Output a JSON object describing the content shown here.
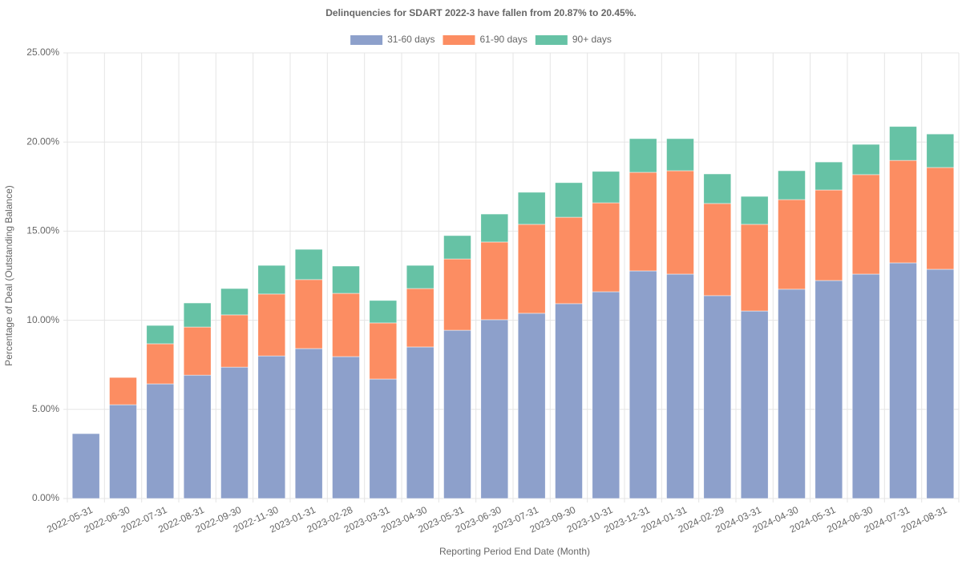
{
  "chart_data": {
    "type": "stacked-bar",
    "title": "Delinquencies for SDART 2022-3 have fallen from 20.87% to 20.45%.",
    "x_label": "Reporting Period End Date (Month)",
    "y_label": "Percentage of Deal (Outstanding Balance)",
    "categories": [
      "2022-05-31",
      "2022-06-30",
      "2022-07-31",
      "2022-08-31",
      "2022-09-30",
      "2022-11-30",
      "2023-01-31",
      "2023-02-28",
      "2023-03-31",
      "2023-04-30",
      "2023-05-31",
      "2023-06-30",
      "2023-07-31",
      "2023-09-30",
      "2023-10-31",
      "2023-12-31",
      "2024-01-31",
      "2024-02-29",
      "2024-03-31",
      "2024-04-30",
      "2024-05-31",
      "2024-06-30",
      "2024-07-31",
      "2024-08-31"
    ],
    "series": [
      {
        "name": "31-60 days",
        "color": "#8da0cb",
        "values": [
          3.64,
          5.26,
          6.43,
          6.92,
          7.37,
          8.0,
          8.41,
          7.96,
          6.7,
          8.5,
          9.44,
          10.03,
          10.39,
          10.93,
          11.6,
          12.77,
          12.59,
          11.38,
          10.52,
          11.74,
          12.23,
          12.59,
          13.22,
          12.86
        ]
      },
      {
        "name": "61-90 days",
        "color": "#fc8d62",
        "values": [
          0,
          1.53,
          2.25,
          2.7,
          2.93,
          3.47,
          3.87,
          3.55,
          3.15,
          3.28,
          4.0,
          4.36,
          4.99,
          4.85,
          4.99,
          5.53,
          5.8,
          5.17,
          4.86,
          5.03,
          5.08,
          5.58,
          5.75,
          5.71
        ]
      },
      {
        "name": "90+ days",
        "color": "#66c2a5",
        "values": [
          0,
          0,
          1.03,
          1.35,
          1.48,
          1.61,
          1.7,
          1.53,
          1.26,
          1.3,
          1.31,
          1.57,
          1.8,
          1.94,
          1.76,
          1.89,
          1.8,
          1.66,
          1.57,
          1.62,
          1.57,
          1.7,
          1.9,
          1.88
        ]
      }
    ],
    "ylim": [
      0,
      25
    ],
    "yticks": [
      {
        "value": 0,
        "label": "0.00%"
      },
      {
        "value": 5,
        "label": "5.00%"
      },
      {
        "value": 10,
        "label": "10.00%"
      },
      {
        "value": 15,
        "label": "15.00%"
      },
      {
        "value": 20,
        "label": "20.00%"
      },
      {
        "value": 25,
        "label": "25.00%"
      }
    ],
    "grid": true,
    "legend": "top"
  }
}
